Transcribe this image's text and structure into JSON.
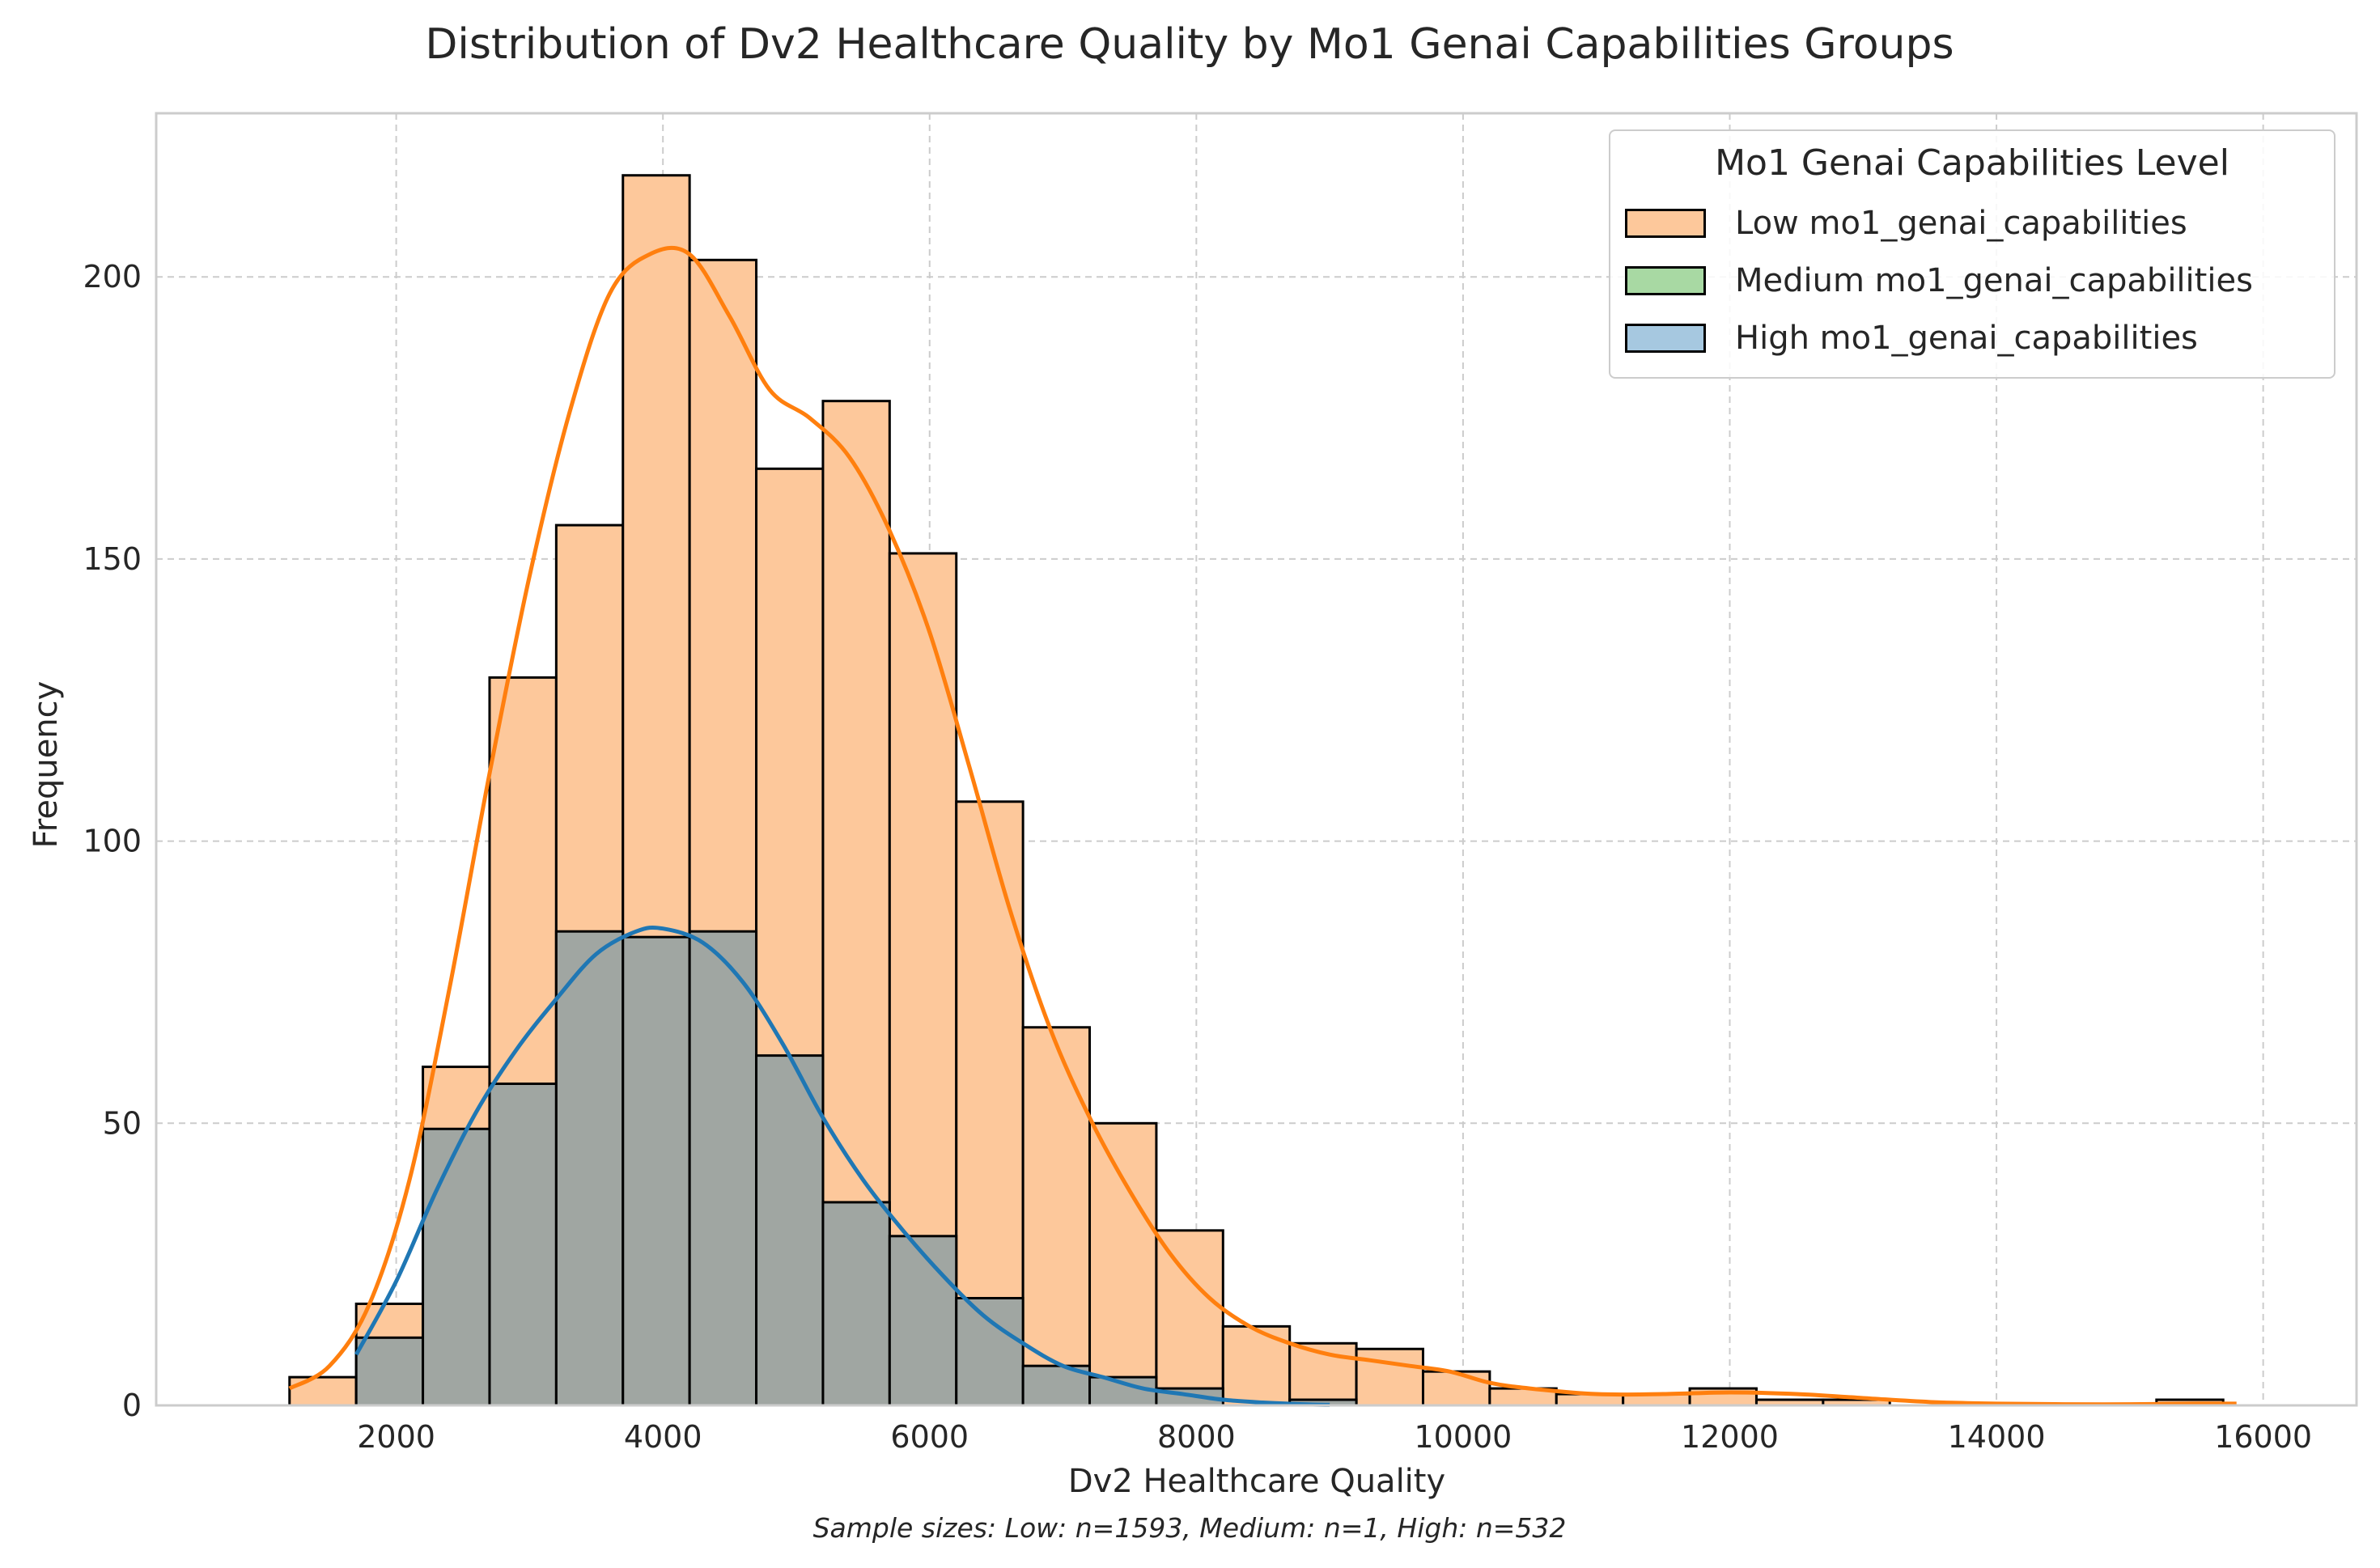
{
  "chart_data": {
    "type": "histogram",
    "title": "Distribution of Dv2 Healthcare Quality by Mo1 Genai Capabilities Groups",
    "xlabel": "Dv2 Healthcare Quality",
    "ylabel": "Frequency",
    "caption": "Sample sizes: Low: n=1593, Medium: n=1, High: n=532",
    "xlim": [
      200,
      16700
    ],
    "ylim": [
      0,
      229
    ],
    "x_ticks": [
      2000,
      4000,
      6000,
      8000,
      10000,
      12000,
      14000,
      16000
    ],
    "y_ticks": [
      0,
      50,
      100,
      150,
      200
    ],
    "grid": true,
    "legend_title": "Mo1 Genai Capabilities Level",
    "legend_position": "top-right",
    "bin_edges": [
      1200,
      1700,
      2200,
      2700,
      3200,
      3700,
      4200,
      4700,
      5200,
      5700,
      6200,
      6700,
      7200,
      7700,
      8200,
      8700,
      9200,
      9700,
      10200,
      10700,
      11200,
      11700,
      12200,
      12700,
      13200,
      13700,
      14200,
      14700,
      15200,
      15700
    ],
    "series": [
      {
        "name": "Low mo1_genai_capabilities",
        "color": "#ff7f0e",
        "fill": "#fdc89b",
        "values": [
          5,
          18,
          60,
          129,
          156,
          218,
          203,
          166,
          178,
          151,
          107,
          67,
          50,
          31,
          14,
          11,
          10,
          6,
          3,
          2,
          2,
          3,
          1,
          1,
          0,
          0,
          0,
          0,
          1
        ],
        "kde_x": [
          1200,
          1500,
          1800,
          2100,
          2400,
          2700,
          3000,
          3300,
          3600,
          3900,
          4200,
          4500,
          4800,
          5100,
          5400,
          5700,
          6000,
          6300,
          6600,
          6900,
          7200,
          7500,
          7800,
          8100,
          8400,
          8700,
          9000,
          9300,
          9600,
          9900,
          10200,
          10500,
          11000,
          11500,
          12000,
          12500,
          13000,
          13500,
          14000,
          14500,
          15000,
          15500,
          15800
        ],
        "kde_y": [
          3,
          7,
          18,
          40,
          74,
          112,
          147,
          176,
          197,
          204,
          204,
          193,
          180,
          175,
          168,
          155,
          137,
          113,
          88,
          67,
          51,
          38,
          27,
          19,
          14,
          11,
          9,
          8,
          7,
          6,
          4,
          3,
          2,
          2,
          2.3,
          2,
          1.3,
          0.6,
          0.3,
          0.2,
          0.2,
          0.3,
          0.3
        ]
      },
      {
        "name": "Medium mo1_genai_capabilities",
        "color": "#2ca02c",
        "fill": "#a8d9a3",
        "values": [
          0,
          0,
          0,
          1,
          0,
          0,
          0,
          0,
          0,
          0,
          0,
          0,
          0,
          0,
          0,
          0,
          0,
          0,
          0,
          0,
          0,
          0,
          0,
          0,
          0,
          0,
          0,
          0,
          0
        ]
      },
      {
        "name": "High mo1_genai_capabilities",
        "color": "#1f77b4",
        "fill": "#a0a6a2",
        "values": [
          0,
          12,
          49,
          57,
          84,
          83,
          84,
          62,
          36,
          30,
          19,
          7,
          5,
          3,
          0,
          1,
          0,
          0,
          0,
          0,
          0,
          0,
          0,
          0,
          0,
          0,
          0,
          0,
          0
        ],
        "kde_x": [
          1700,
          2000,
          2300,
          2600,
          2900,
          3200,
          3500,
          3800,
          4000,
          4300,
          4600,
          4900,
          5200,
          5500,
          5800,
          6100,
          6400,
          6700,
          7000,
          7300,
          7600,
          7900,
          8200,
          8500,
          8800,
          9000
        ],
        "kde_y": [
          9,
          22,
          38,
          52,
          63,
          72,
          80,
          84,
          84.5,
          82,
          75,
          64,
          51,
          40,
          31,
          23,
          16,
          11,
          7,
          5,
          3,
          2,
          1,
          0.5,
          0.2,
          0.1
        ]
      }
    ]
  }
}
